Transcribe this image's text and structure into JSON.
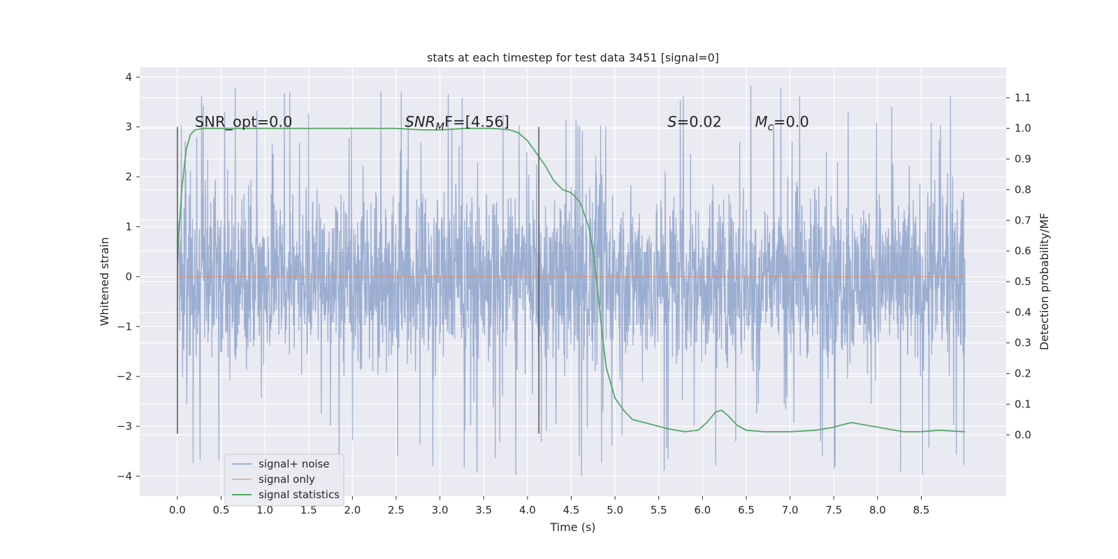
{
  "chart_data": {
    "type": "line",
    "title": "stats at each timestep for test data 3451 [signal=0]",
    "xlabel": "Time (s)",
    "ylabel": "Whitened strain",
    "ylabel_right": "Detection probability/MF",
    "xlim": [
      -0.43,
      9.47
    ],
    "ylim": [
      -4.4,
      4.2
    ],
    "ylim_right": [
      -0.2,
      1.2
    ],
    "x_ticks": [
      "0.0",
      "0.5",
      "1.0",
      "1.5",
      "2.0",
      "2.5",
      "3.0",
      "3.5",
      "4.0",
      "4.5",
      "5.0",
      "5.5",
      "6.0",
      "6.5",
      "7.0",
      "7.5",
      "8.0",
      "8.5"
    ],
    "y_ticks": [
      "4",
      "3",
      "2",
      "1",
      "0",
      "−1",
      "−2",
      "−3",
      "−4"
    ],
    "y_right_ticks": [
      "1.1",
      "1.0",
      "0.9",
      "0.8",
      "0.7",
      "0.6",
      "0.5",
      "0.4",
      "0.3",
      "0.2",
      "0.1",
      "0.0"
    ],
    "grid": true,
    "legend_position": "lower-left",
    "noise_range": [
      0.0,
      9.0
    ],
    "noise_envelope": {
      "typical_low": -2.0,
      "typical_high": 2.2,
      "min": -4.0,
      "max": 3.85
    },
    "series": [
      {
        "name": "signal+ noise",
        "color": "#4c72b0",
        "alpha": 0.5,
        "axis": "left",
        "kind": "noise"
      },
      {
        "name": "signal only",
        "color": "#dd8452",
        "alpha": 0.5,
        "axis": "left",
        "x": [
          0.0,
          9.0
        ],
        "y": [
          0.0,
          0.0
        ]
      },
      {
        "name": "signal statistics",
        "color": "#55a868",
        "axis": "right",
        "x": [
          0.0,
          0.05,
          0.1,
          0.15,
          0.2,
          0.3,
          0.5,
          1.0,
          1.5,
          2.0,
          2.5,
          2.8,
          3.0,
          3.3,
          3.6,
          3.8,
          3.9,
          4.0,
          4.1,
          4.2,
          4.3,
          4.4,
          4.5,
          4.6,
          4.7,
          4.75,
          4.8,
          4.85,
          4.9,
          5.0,
          5.1,
          5.2,
          5.4,
          5.6,
          5.8,
          5.95,
          6.05,
          6.15,
          6.22,
          6.3,
          6.4,
          6.5,
          6.7,
          7.0,
          7.3,
          7.5,
          7.7,
          7.9,
          8.1,
          8.3,
          8.5,
          8.7,
          9.0
        ],
        "y": [
          0.58,
          0.8,
          0.93,
          0.98,
          0.995,
          1.0,
          1.0,
          1.0,
          1.0,
          1.0,
          1.0,
          0.995,
          0.995,
          1.0,
          1.0,
          0.995,
          0.985,
          0.96,
          0.92,
          0.88,
          0.83,
          0.8,
          0.79,
          0.76,
          0.68,
          0.6,
          0.48,
          0.34,
          0.22,
          0.12,
          0.08,
          0.05,
          0.035,
          0.02,
          0.01,
          0.015,
          0.04,
          0.075,
          0.08,
          0.06,
          0.03,
          0.015,
          0.01,
          0.01,
          0.015,
          0.025,
          0.04,
          0.03,
          0.02,
          0.01,
          0.01,
          0.015,
          0.01
        ]
      }
    ],
    "vertical_markers": [
      {
        "x": 0.0,
        "y_range": [
          -3.15,
          3.0
        ],
        "color": "#555555"
      },
      {
        "x": 4.13,
        "y_range": [
          -3.15,
          3.0
        ],
        "color": "#555555"
      }
    ],
    "annotations": [
      {
        "x": 0.2,
        "y": 3.0,
        "text": "SNR_opt=0.0"
      },
      {
        "x": 2.6,
        "y": 3.0,
        "prefix": "SNR",
        "sub": "M",
        "suffix": "F=[4.56]"
      },
      {
        "x": 5.6,
        "y": 3.0,
        "prefix": "S",
        "sub": "",
        "suffix": "=0.02"
      },
      {
        "x": 6.6,
        "y": 3.0,
        "prefix": "M",
        "sub": "c",
        "suffix": "=0.0"
      }
    ]
  }
}
